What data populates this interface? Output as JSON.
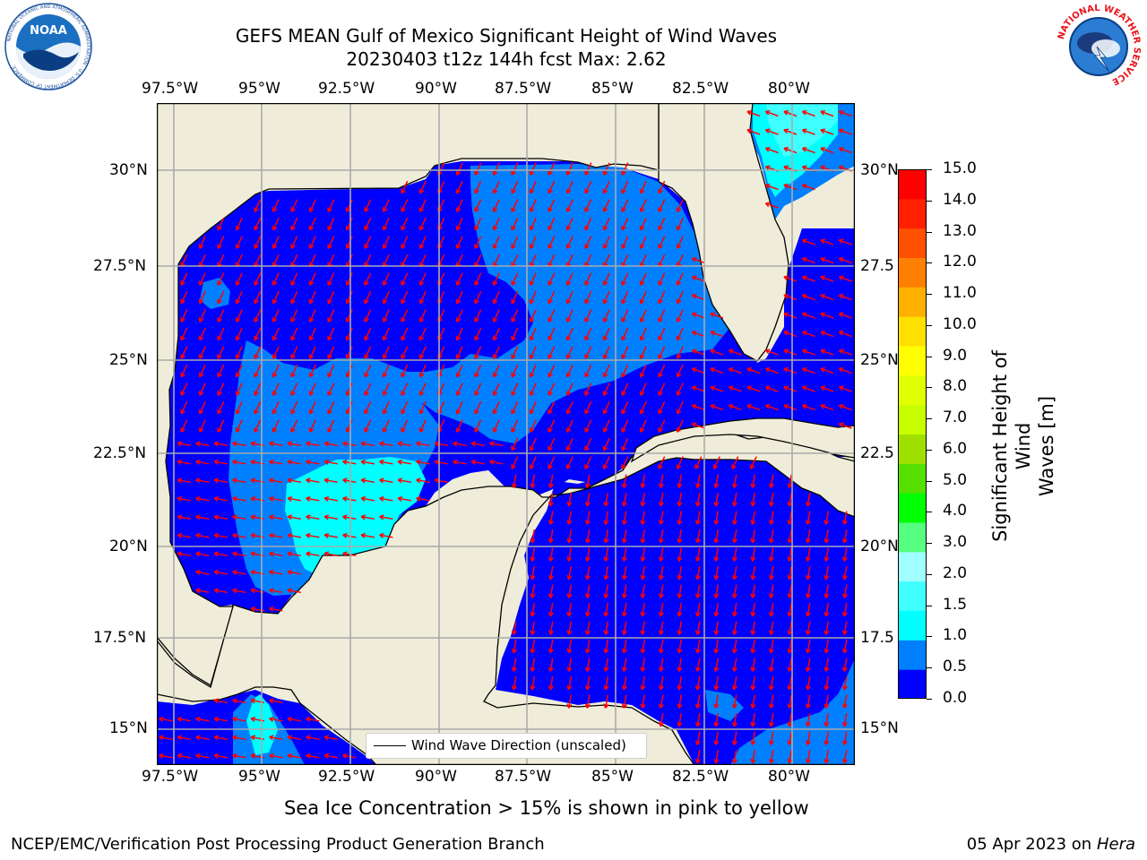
{
  "title": {
    "line1": "GEFS MEAN Gulf of Mexico Significant Height of Wind Waves",
    "line2": "20230403 t12z 144h fcst   Max: 2.62"
  },
  "logos": {
    "noaa_text": "NOAA",
    "noaa_ring_text": "NATIONAL OCEANIC AND ATMOSPHERIC ADMINISTRATION · U.S. DEPARTMENT OF COMMERCE",
    "nws_ring_text": "NATIONAL WEATHER SERVICE"
  },
  "map": {
    "lon_ticks": [
      "97.5°W",
      "95°W",
      "92.5°W",
      "90°W",
      "87.5°W",
      "85°W",
      "82.5°W",
      "80°W"
    ],
    "lat_ticks_left": [
      "30°N",
      "27.5°N",
      "25°N",
      "22.5°N",
      "20°N",
      "17.5°N",
      "15°N"
    ],
    "lat_ticks_right": [
      "30°N",
      "27.5",
      "25°N",
      "22.5",
      "20°N",
      "17.5",
      "15°N"
    ],
    "land_color": "#efedd9",
    "wave_direction_color": "#ff0000",
    "legend_label": "Wind Wave Direction (unscaled)"
  },
  "colorbar": {
    "label": "Significant Height of Wind Waves [m]",
    "label_line1": "Significant Height of Wind",
    "label_line2": "Waves [m]",
    "ticks": [
      "15.0",
      "14.0",
      "13.0",
      "12.0",
      "11.0",
      "10.0",
      "9.0",
      "8.0",
      "7.0",
      "6.0",
      "5.0",
      "4.0",
      "3.0",
      "2.0",
      "1.5",
      "1.0",
      "0.5",
      "0.0"
    ],
    "colors_bottom_to_top": [
      "#0000ff",
      "#0080ff",
      "#00ffff",
      "#40ffff",
      "#a0ffff",
      "#55ff80",
      "#00ff00",
      "#55e000",
      "#a0e000",
      "#c8ff00",
      "#e0ff00",
      "#ffff00",
      "#ffe000",
      "#ffb000",
      "#ff8000",
      "#ff5000",
      "#ff2000",
      "#ff0000"
    ]
  },
  "notes": {
    "sea_ice": "Sea Ice Concentration > 15% is shown in pink to yellow"
  },
  "footer": {
    "left": "NCEP/EMC/Verification Post Processing Product Generation Branch",
    "date": "05 Apr 2023 on ",
    "machine": "Hera"
  }
}
